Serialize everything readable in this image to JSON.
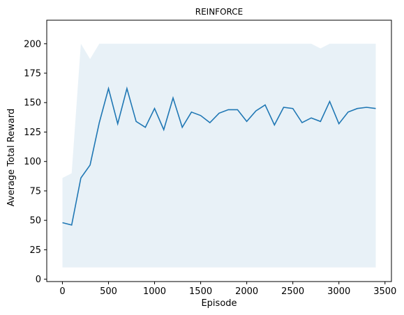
{
  "chart_data": {
    "type": "line",
    "title": "REINFORCE",
    "xlabel": "Episode",
    "ylabel": "Average Total Reward",
    "xlim": [
      -170,
      3570
    ],
    "ylim": [
      -2,
      220
    ],
    "xticks": [
      0,
      500,
      1000,
      1500,
      2000,
      2500,
      3000,
      3500
    ],
    "yticks": [
      0,
      25,
      50,
      75,
      100,
      125,
      150,
      175,
      200
    ],
    "grid": false,
    "colors": {
      "line": "#1f77b4",
      "band": "#1f77b4"
    },
    "series": [
      {
        "x": [
          0,
          100,
          200,
          300,
          400,
          500,
          600,
          700,
          800,
          900,
          1000,
          1100,
          1200,
          1300,
          1400,
          1500,
          1600,
          1700,
          1800,
          1900,
          2000,
          2100,
          2200,
          2300,
          2400,
          2500,
          2600,
          2700,
          2800,
          2900,
          3000,
          3100,
          3200,
          3300,
          3400
        ],
        "y": [
          48,
          46,
          86,
          97,
          133,
          162,
          132,
          162,
          134,
          129,
          145,
          127,
          154,
          129,
          142,
          139,
          133,
          141,
          144,
          144,
          134,
          143,
          148,
          131,
          146,
          145,
          133,
          137,
          134,
          151,
          132,
          142,
          145,
          146,
          145
        ],
        "upper": [
          86,
          90,
          200,
          187,
          200,
          200,
          200,
          200,
          200,
          200,
          200,
          200,
          200,
          200,
          200,
          200,
          200,
          200,
          200,
          200,
          200,
          200,
          200,
          200,
          200,
          200,
          200,
          200,
          196,
          200,
          200,
          200,
          200,
          200,
          200
        ],
        "lower": [
          10,
          10,
          10,
          10,
          10,
          10,
          10,
          10,
          10,
          10,
          10,
          10,
          10,
          10,
          10,
          10,
          10,
          10,
          10,
          10,
          10,
          10,
          10,
          10,
          10,
          10,
          10,
          10,
          10,
          10,
          10,
          10,
          10,
          10,
          10
        ]
      }
    ]
  }
}
